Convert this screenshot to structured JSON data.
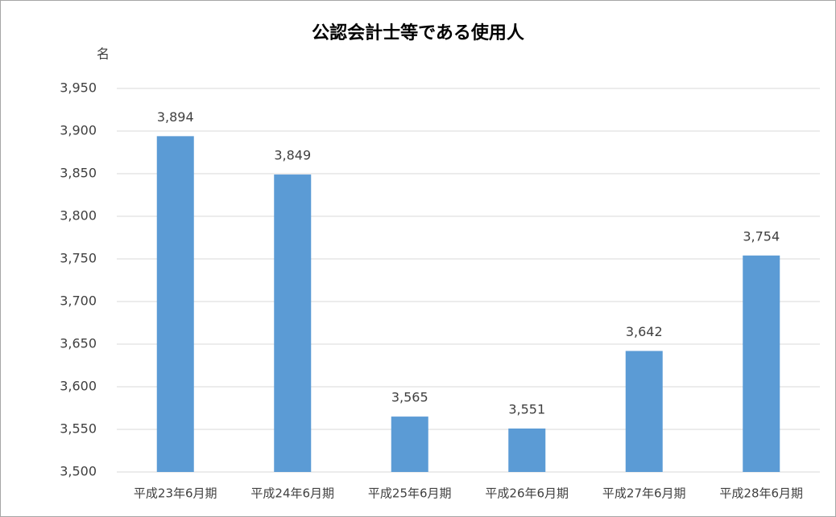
{
  "chart_data": {
    "type": "bar",
    "title": "公認会計士等である使用人",
    "y_label": "名",
    "categories": [
      "平成23年6月期",
      "平成24年6月期",
      "平成25年6月期",
      "平成26年6月期",
      "平成27年6月期",
      "平成28年6月期"
    ],
    "values": [
      3894,
      3849,
      3565,
      3551,
      3642,
      3754
    ],
    "value_labels": [
      "3,894",
      "3,849",
      "3,565",
      "3,551",
      "3,642",
      "3,754"
    ],
    "color": "#5b9bd5",
    "ylim": [
      3500,
      3950
    ],
    "yticks": [
      {
        "value": 3500,
        "label": "3,500"
      },
      {
        "value": 3550,
        "label": "3,550"
      },
      {
        "value": 3600,
        "label": "3,600"
      },
      {
        "value": 3650,
        "label": "3,650"
      },
      {
        "value": 3700,
        "label": "3,700"
      },
      {
        "value": 3750,
        "label": "3,750"
      },
      {
        "value": 3800,
        "label": "3,800"
      },
      {
        "value": 3850,
        "label": "3,850"
      },
      {
        "value": 3900,
        "label": "3,900"
      },
      {
        "value": 3950,
        "label": "3,950"
      }
    ],
    "grid": true
  }
}
